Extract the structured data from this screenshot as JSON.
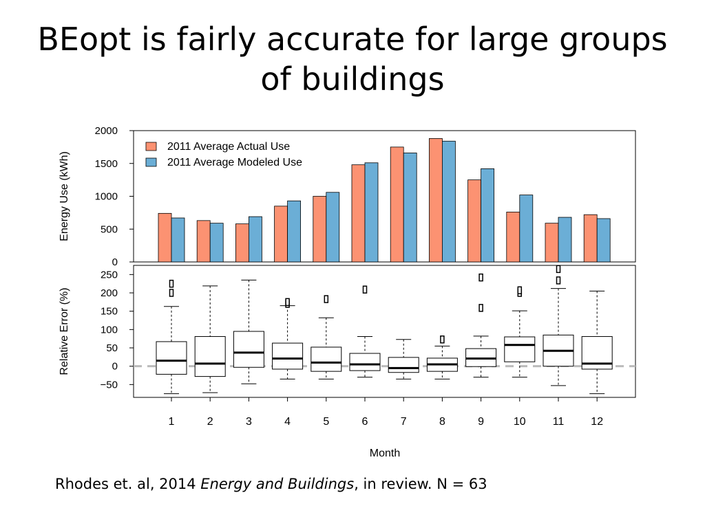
{
  "slide": {
    "title_line1": "BEopt is fairly accurate for large groups",
    "title_line2": "of buildings"
  },
  "citation": {
    "pre": "Rhodes et. al, 2014 ",
    "journal": "Energy and Buildings",
    "post": ", in review.  N = 63"
  },
  "colors": {
    "actual": "#fc9272",
    "modeled": "#6baed6",
    "zero_line": "#bbbbbb"
  },
  "chart_data": [
    {
      "type": "bar",
      "categories": [
        "1",
        "2",
        "3",
        "4",
        "5",
        "6",
        "7",
        "8",
        "9",
        "10",
        "11",
        "12"
      ],
      "series": [
        {
          "name": "2011 Average Actual Use",
          "values": [
            740,
            630,
            580,
            850,
            1000,
            1480,
            1750,
            1880,
            1250,
            760,
            590,
            720
          ]
        },
        {
          "name": "2011 Average Modeled Use",
          "values": [
            670,
            590,
            690,
            930,
            1060,
            1510,
            1660,
            1840,
            1420,
            1020,
            680,
            660
          ]
        }
      ],
      "ylabel": "Energy Use (kWh)",
      "ylim": [
        0,
        2000
      ],
      "yticks": [
        0,
        500,
        1000,
        1500,
        2000
      ],
      "legend_position": "top-left"
    },
    {
      "type": "box",
      "categories": [
        "1",
        "2",
        "3",
        "4",
        "5",
        "6",
        "7",
        "8",
        "9",
        "10",
        "11",
        "12"
      ],
      "boxes": [
        {
          "whisker_low": -75,
          "q1": -22,
          "median": 15,
          "q3": 67,
          "whisker_high": 163,
          "outliers": [
            200,
            225
          ]
        },
        {
          "whisker_low": -72,
          "q1": -28,
          "median": 7,
          "q3": 81,
          "whisker_high": 219,
          "outliers": []
        },
        {
          "whisker_low": -48,
          "q1": -3,
          "median": 37,
          "q3": 95,
          "whisker_high": 235,
          "outliers": []
        },
        {
          "whisker_low": -35,
          "q1": -8,
          "median": 21,
          "q3": 63,
          "whisker_high": 165,
          "outliers": [
            170,
            175
          ]
        },
        {
          "whisker_low": -35,
          "q1": -14,
          "median": 10,
          "q3": 52,
          "whisker_high": 132,
          "outliers": [
            183
          ]
        },
        {
          "whisker_low": -30,
          "q1": -12,
          "median": 5,
          "q3": 35,
          "whisker_high": 81,
          "outliers": [
            209
          ]
        },
        {
          "whisker_low": -35,
          "q1": -17,
          "median": -5,
          "q3": 24,
          "whisker_high": 73,
          "outliers": []
        },
        {
          "whisker_low": -35,
          "q1": -14,
          "median": 5,
          "q3": 22,
          "whisker_high": 55,
          "outliers": [
            73
          ]
        },
        {
          "whisker_low": -30,
          "q1": -1,
          "median": 21,
          "q3": 48,
          "whisker_high": 82,
          "outliers": [
            159,
            242
          ]
        },
        {
          "whisker_low": -30,
          "q1": 12,
          "median": 58,
          "q3": 80,
          "whisker_high": 151,
          "outliers": [
            200,
            207
          ]
        },
        {
          "whisker_low": -53,
          "q1": 0,
          "median": 42,
          "q3": 85,
          "whisker_high": 212,
          "outliers": [
            234,
            265
          ]
        },
        {
          "whisker_low": -75,
          "q1": -8,
          "median": 7,
          "q3": 81,
          "whisker_high": 205,
          "outliers": []
        }
      ],
      "ylabel": "Relative Error (%)",
      "xlabel": "Month",
      "ylim": [
        -85,
        275
      ],
      "yticks": [
        -50,
        0,
        50,
        100,
        150,
        200,
        250
      ],
      "ytick_labels": [
        "−50",
        "0",
        "50",
        "100",
        "150",
        "200",
        "250"
      ],
      "reference_line": 0
    }
  ]
}
